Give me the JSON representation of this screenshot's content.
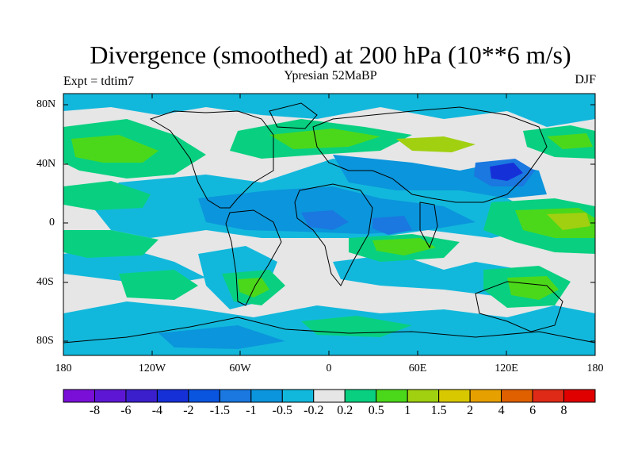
{
  "title": "Divergence (smoothed) at 200 hPa (10**6 m/s)",
  "subtitle": "Ypresian  52MaBP",
  "experiment": "Expt = tdtim7",
  "season": "DJF",
  "map": {
    "lat_ticks": [
      "80N",
      "40N",
      "0",
      "40S",
      "80S"
    ],
    "lat_values": [
      80,
      40,
      0,
      -40,
      -80
    ],
    "lon_ticks": [
      "180",
      "120W",
      "60W",
      "0",
      "60E",
      "120E",
      "180"
    ],
    "lon_values": [
      -180,
      -120,
      -60,
      0,
      60,
      120,
      180
    ],
    "lon_range": [
      -180,
      180
    ],
    "lat_range": [
      -90,
      90
    ]
  },
  "colorbar": {
    "labels": [
      "-8",
      "-6",
      "-4",
      "-2",
      "-1.5",
      "-1",
      "-0.5",
      "-0.2",
      "0.2",
      "0.5",
      "1",
      "1.5",
      "2",
      "4",
      "6",
      "8"
    ],
    "colors": [
      "#7a10d8",
      "#5d17d4",
      "#3b1fcc",
      "#1630d8",
      "#0a55e0",
      "#1a78e0",
      "#0b95dc",
      "#12b8dc",
      "#e6e6e6",
      "#08d080",
      "#4cd81a",
      "#a0d010",
      "#d8c800",
      "#e6a000",
      "#e06000",
      "#e02a18",
      "#e00000"
    ]
  },
  "fields": {
    "palette": {
      "c_-1": "#1a78e0",
      "c_-0.5": "#0b95dc",
      "c_-0.2": "#12b8dc",
      "c_0.2": "#e6e6e6",
      "c_0.5": "#08d080",
      "c_1": "#4cd81a",
      "c_1.5": "#a0d010",
      "c_-2": "#1630d8"
    }
  }
}
